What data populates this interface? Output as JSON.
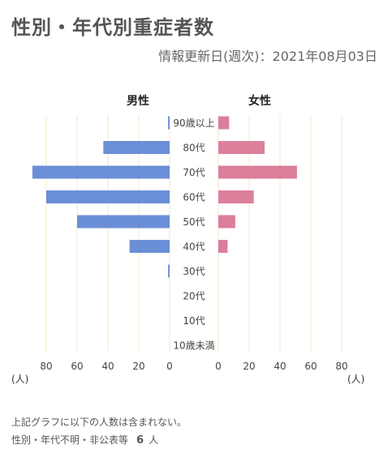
{
  "page": {
    "title": "性別・年代別重症者数",
    "updated": "情報更新日(週次)：2021年08月03日",
    "note": "上記グラフに以下の人数は含まれない。",
    "undisclosed_label": "性別・年代不明・非公表等",
    "undisclosed_count": "6",
    "undisclosed_unit": "人"
  },
  "colors": {
    "male": "#6b8fd6",
    "female": "#db7f9a",
    "grid": "#efe9c8"
  },
  "chart_data": {
    "type": "bar",
    "orientation": "horizontal-population-pyramid",
    "categories": [
      "90歳以上",
      "80代",
      "70代",
      "60代",
      "50代",
      "40代",
      "30代",
      "20代",
      "10代",
      "10歳未満"
    ],
    "series": [
      {
        "name": "男性",
        "values": [
          1,
          43,
          89,
          80,
          60,
          26,
          1,
          0,
          0,
          0
        ]
      },
      {
        "name": "女性",
        "values": [
          7,
          30,
          51,
          23,
          11,
          6,
          0,
          0,
          0,
          0
        ]
      }
    ],
    "xticks": [
      0,
      20,
      40,
      60,
      80
    ],
    "xlim": [
      0,
      90
    ],
    "unit_label": "(人)",
    "grid": true
  }
}
